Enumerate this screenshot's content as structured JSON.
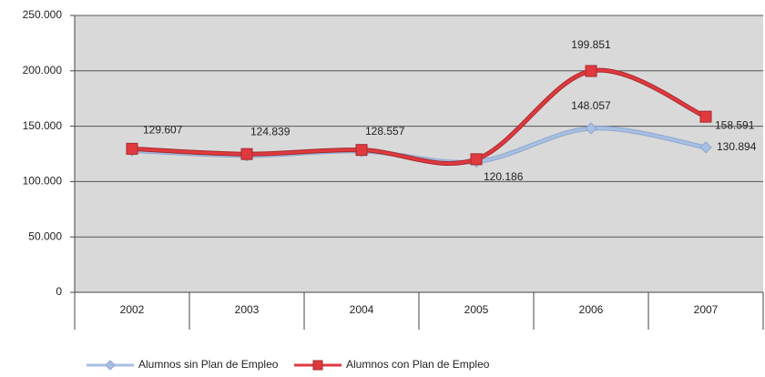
{
  "chart_data": {
    "type": "line",
    "categories": [
      "2002",
      "2003",
      "2004",
      "2005",
      "2006",
      "2007"
    ],
    "series": [
      {
        "name": "Alumnos sin Plan de Empleo",
        "color": "#a7bfe3",
        "values": [
          128000,
          123500,
          127500,
          118000,
          148057,
          130894
        ],
        "value_labels": [
          null,
          null,
          null,
          null,
          "148.057",
          "130.894"
        ]
      },
      {
        "name": "Alumnos con Plan de Empleo",
        "color": "#e0393e",
        "values": [
          129607,
          124839,
          128557,
          120186,
          199851,
          158591
        ],
        "value_labels": [
          "129.607",
          "124.839",
          "128.557",
          "120.186",
          "199.851",
          "158.591"
        ]
      }
    ],
    "ylim": [
      0,
      250000
    ],
    "yticks": [
      0,
      {
        "value": 50000,
        "label": "50.000"
      },
      {
        "value": 100000,
        "label": "100.000"
      },
      {
        "value": 150000,
        "label": "150.000"
      },
      {
        "value": 200000,
        "label": "200.000"
      },
      {
        "value": 250000,
        "label": "250.000"
      }
    ],
    "grid": true,
    "legend": "bottom"
  }
}
